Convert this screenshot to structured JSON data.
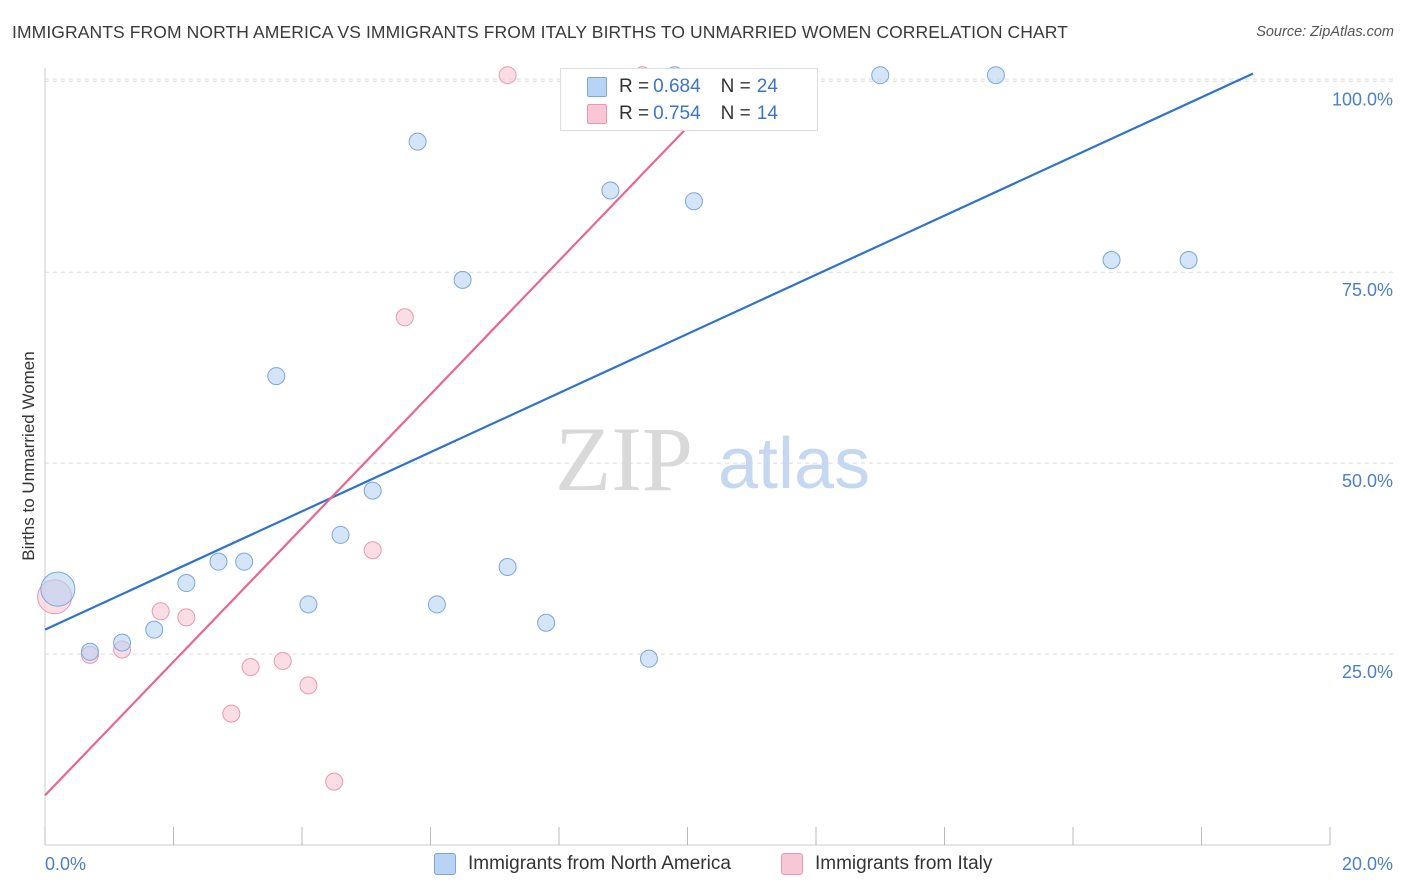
{
  "header": {
    "title": "IMMIGRANTS FROM NORTH AMERICA VS IMMIGRANTS FROM ITALY BIRTHS TO UNMARRIED WOMEN CORRELATION CHART",
    "source": "Source: ZipAtlas.com"
  },
  "legend": {
    "series1": {
      "r_label": "R = ",
      "r_value": "0.684",
      "n_label": "N = ",
      "n_value": "24"
    },
    "series2": {
      "r_label": "R = ",
      "r_value": "0.754",
      "n_label": "N = ",
      "n_value": "14"
    }
  },
  "watermark": {
    "zip": "ZIP",
    "atlas": "atlas"
  },
  "colors": {
    "blue_fill": "#b8d3f3",
    "blue_stroke": "#7aa7e0",
    "blue_line": "#2f73cc",
    "pink_fill": "#f8c7d6",
    "pink_stroke": "#ec97b1",
    "pink_line": "#e8668f",
    "tick_text": "#4a7fc9",
    "grid": "#dcdcdc"
  },
  "chart_data": {
    "type": "scatter",
    "title": "IMMIGRANTS FROM NORTH AMERICA VS IMMIGRANTS FROM ITALY BIRTHS TO UNMARRIED WOMEN CORRELATION CHART",
    "xlabel": "",
    "ylabel": "Births to Unmarried Women",
    "xlim": [
      0,
      20
    ],
    "ylim": [
      0,
      102
    ],
    "x_tick_labels": [
      "0.0%",
      "20.0%"
    ],
    "y_ticks": [
      25,
      50,
      75,
      100
    ],
    "y_tick_labels": [
      "25.0%",
      "50.0%",
      "75.0%",
      "100.0%"
    ],
    "grid": true,
    "series": [
      {
        "name": "Immigrants from North America",
        "color": "#b8d3f3",
        "points": [
          {
            "x": 0.2,
            "y": 33.5,
            "size": "large"
          },
          {
            "x": 0.7,
            "y": 25.3
          },
          {
            "x": 1.2,
            "y": 26.5
          },
          {
            "x": 1.7,
            "y": 28.2
          },
          {
            "x": 2.2,
            "y": 34.3
          },
          {
            "x": 2.7,
            "y": 37.1
          },
          {
            "x": 3.1,
            "y": 37.1
          },
          {
            "x": 3.6,
            "y": 61.4
          },
          {
            "x": 4.1,
            "y": 31.5
          },
          {
            "x": 4.6,
            "y": 40.6
          },
          {
            "x": 5.1,
            "y": 46.4
          },
          {
            "x": 5.8,
            "y": 92.1
          },
          {
            "x": 6.1,
            "y": 31.5
          },
          {
            "x": 6.5,
            "y": 74.0
          },
          {
            "x": 7.2,
            "y": 36.4
          },
          {
            "x": 7.8,
            "y": 29.1
          },
          {
            "x": 8.8,
            "y": 85.7
          },
          {
            "x": 9.4,
            "y": 24.4
          },
          {
            "x": 9.8,
            "y": 100.8
          },
          {
            "x": 10.1,
            "y": 84.3
          },
          {
            "x": 13.0,
            "y": 100.8
          },
          {
            "x": 14.8,
            "y": 100.8
          },
          {
            "x": 16.6,
            "y": 76.6
          },
          {
            "x": 17.8,
            "y": 76.6
          }
        ],
        "trend": {
          "x": [
            0,
            18.8
          ],
          "y": [
            28.2,
            101.0
          ]
        }
      },
      {
        "name": "Immigrants from Italy",
        "color": "#f8c7d6",
        "points": [
          {
            "x": 0.15,
            "y": 32.5,
            "size": "large"
          },
          {
            "x": 0.7,
            "y": 24.9
          },
          {
            "x": 1.2,
            "y": 25.6
          },
          {
            "x": 1.8,
            "y": 30.6
          },
          {
            "x": 2.2,
            "y": 29.8
          },
          {
            "x": 2.9,
            "y": 17.2
          },
          {
            "x": 3.2,
            "y": 23.3
          },
          {
            "x": 3.7,
            "y": 24.1
          },
          {
            "x": 4.1,
            "y": 20.9
          },
          {
            "x": 4.5,
            "y": 8.3
          },
          {
            "x": 5.1,
            "y": 38.6
          },
          {
            "x": 5.6,
            "y": 69.1
          },
          {
            "x": 7.2,
            "y": 100.8
          },
          {
            "x": 9.3,
            "y": 100.8
          }
        ],
        "trend": {
          "x": [
            0,
            10.0
          ],
          "y": [
            6.5,
            94.0
          ]
        }
      }
    ]
  },
  "bottom_legend": {
    "item1": "Immigrants from North America",
    "item2": "Immigrants from Italy"
  }
}
